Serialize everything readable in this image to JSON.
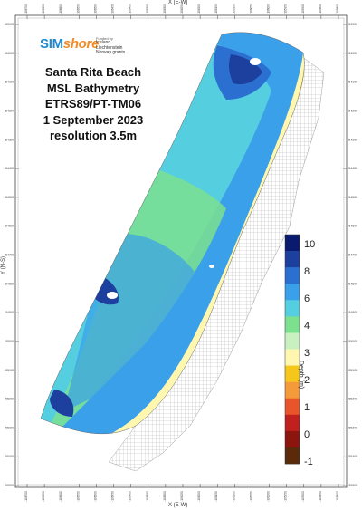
{
  "map": {
    "title_lines": [
      "Santa Rita Beach",
      "MSL Bathymetry",
      "ETRS89/PT-TM06",
      "1 September 2023",
      "resolution 3.5m"
    ],
    "x_axis_title": "X (E-W)",
    "y_axis_title": "Y (N-S)",
    "x_ticks": [
      "-106700",
      "-106650",
      "-106600",
      "-106550",
      "-106500",
      "-106450",
      "-106400",
      "-106350",
      "-106300",
      "-106250",
      "-106200",
      "-106150",
      "-106100",
      "-106050",
      "-106000",
      "-105950",
      "-105900",
      "-105850",
      "-105800"
    ],
    "y_ticks": [
      "-53900",
      "-54000",
      "-54100",
      "-54200",
      "-54300",
      "-54400",
      "-54500",
      "-54600",
      "-54700",
      "-54800",
      "-54900",
      "-55000",
      "-55100",
      "-55200",
      "-55300",
      "-55400",
      "-55500"
    ]
  },
  "logo": {
    "text_part1": "SIM",
    "text_part2": "shore",
    "funded_by": "Funded by",
    "grants_lines": [
      "Iceland",
      "Liechtenstein",
      "Norway grants"
    ]
  },
  "legend": {
    "title": "Depth (m)",
    "labels": [
      "10",
      "8",
      "6",
      "4",
      "3",
      "2",
      "1",
      "0",
      "-1"
    ],
    "colors": [
      "#0a1a6e",
      "#1d3f9e",
      "#2b6fd0",
      "#3aa0ea",
      "#55cfe0",
      "#7de08f",
      "#c9f0c0",
      "#fff7b0",
      "#f5c71a",
      "#f59a3a",
      "#e8552b",
      "#c0211f",
      "#8c1510",
      "#5a2a0a"
    ]
  }
}
